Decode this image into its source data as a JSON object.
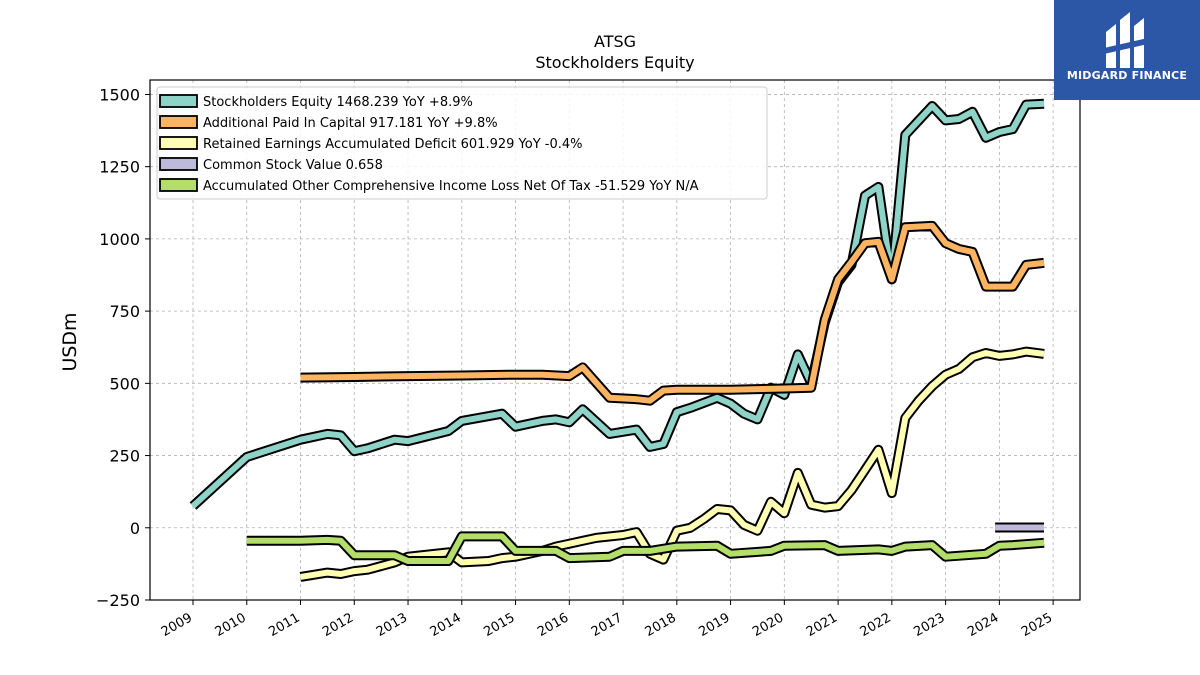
{
  "chart_data": {
    "type": "line",
    "title": "ATSG",
    "subtitle": "Stockholders  Equity",
    "ylabel": "USDm",
    "xlabel": "",
    "ylim": [
      -250,
      1550
    ],
    "xlim": [
      2008.2,
      2025.5
    ],
    "yticks": [
      -250,
      0,
      250,
      500,
      750,
      1000,
      1250,
      1500
    ],
    "ytick_labels": [
      "−250",
      "0",
      "250",
      "500",
      "750",
      "1000",
      "1250",
      "1500"
    ],
    "xticks": [
      "2009",
      "2010",
      "2011",
      "2012",
      "2013",
      "2014",
      "2015",
      "2016",
      "2017",
      "2018",
      "2019",
      "2020",
      "2021",
      "2022",
      "2023",
      "2024",
      "2025"
    ],
    "grid": true,
    "legend_position": "upper-left",
    "series": [
      {
        "name": "Stockholders Equity  1468.239 YoY +8.9%",
        "color": "#8dd3c7",
        "x": [
          2009.0,
          2010.0,
          2011.0,
          2011.5,
          2011.75,
          2012.0,
          2012.25,
          2012.75,
          2013.0,
          2013.75,
          2014.0,
          2014.75,
          2015.0,
          2015.5,
          2015.75,
          2016.0,
          2016.25,
          2016.75,
          2017.25,
          2017.5,
          2017.75,
          2018.0,
          2018.25,
          2018.75,
          2019.0,
          2019.25,
          2019.5,
          2019.75,
          2020.0,
          2020.25,
          2020.5,
          2020.75,
          2021.0,
          2021.25,
          2021.5,
          2021.75,
          2022.0,
          2022.25,
          2022.75,
          2023.0,
          2023.25,
          2023.5,
          2023.75,
          2024.0,
          2024.25,
          2024.5,
          2024.83
        ],
        "values": [
          75,
          245,
          305,
          325,
          320,
          265,
          275,
          305,
          300,
          335,
          370,
          395,
          350,
          370,
          375,
          365,
          410,
          325,
          340,
          280,
          290,
          400,
          415,
          450,
          430,
          395,
          375,
          485,
          460,
          600,
          500,
          710,
          850,
          910,
          1150,
          1180,
          860,
          1360,
          1460,
          1410,
          1415,
          1440,
          1350,
          1370,
          1380,
          1465,
          1468
        ]
      },
      {
        "name": "Additional Paid In Capital  917.181 YoY +9.8%",
        "color": "#fdb462",
        "x": [
          2011.0,
          2012.0,
          2013.0,
          2014.0,
          2015.0,
          2015.5,
          2016.0,
          2016.25,
          2016.75,
          2017.25,
          2017.5,
          2017.75,
          2018.0,
          2018.5,
          2019.0,
          2019.5,
          2020.0,
          2020.5,
          2020.75,
          2021.0,
          2021.25,
          2021.5,
          2021.75,
          2022.0,
          2022.25,
          2022.75,
          2023.0,
          2023.25,
          2023.5,
          2023.75,
          2024.0,
          2024.25,
          2024.5,
          2024.83
        ],
        "values": [
          520,
          522,
          525,
          527,
          530,
          530,
          525,
          555,
          450,
          445,
          440,
          475,
          478,
          478,
          478,
          480,
          482,
          485,
          720,
          860,
          920,
          985,
          990,
          860,
          1040,
          1045,
          985,
          965,
          955,
          835,
          835,
          835,
          910,
          917
        ]
      },
      {
        "name": "Retained Earnings Accumulated Deficit  601.929 YoY -0.4%",
        "color": "#ffffb3",
        "x": [
          2011.0,
          2011.5,
          2011.75,
          2012.0,
          2012.25,
          2012.75,
          2013.0,
          2013.75,
          2014.0,
          2014.5,
          2014.75,
          2015.0,
          2015.5,
          2015.75,
          2016.0,
          2016.25,
          2016.5,
          2017.0,
          2017.25,
          2017.5,
          2017.75,
          2018.0,
          2018.25,
          2018.5,
          2018.75,
          2019.0,
          2019.25,
          2019.5,
          2019.75,
          2020.0,
          2020.25,
          2020.5,
          2020.75,
          2021.0,
          2021.25,
          2021.5,
          2021.75,
          2022.0,
          2022.25,
          2022.5,
          2022.75,
          2023.0,
          2023.25,
          2023.5,
          2023.75,
          2024.0,
          2024.25,
          2024.5,
          2024.83
        ],
        "values": [
          -170,
          -155,
          -160,
          -150,
          -145,
          -120,
          -100,
          -85,
          -120,
          -115,
          -105,
          -100,
          -80,
          -65,
          -55,
          -45,
          -35,
          -25,
          -15,
          -90,
          -110,
          -10,
          0,
          30,
          65,
          60,
          10,
          -10,
          90,
          50,
          190,
          80,
          70,
          75,
          130,
          200,
          270,
          120,
          380,
          440,
          490,
          530,
          550,
          590,
          605,
          595,
          600,
          610,
          602
        ]
      },
      {
        "name": "Common Stock Value  0.658",
        "color": "#bebada",
        "x": [
          2023.92,
          2024.83
        ],
        "values": [
          1,
          1
        ]
      },
      {
        "name": "Accumulated Other Comprehensive Income Loss Net Of Tax  -51.529 YoY N/A",
        "color": "#b3de69",
        "x": [
          2010.0,
          2011.0,
          2011.5,
          2011.75,
          2012.0,
          2012.75,
          2013.0,
          2013.75,
          2014.0,
          2014.75,
          2015.0,
          2015.75,
          2016.0,
          2016.75,
          2017.0,
          2017.5,
          2018.0,
          2018.75,
          2019.0,
          2019.75,
          2020.0,
          2020.75,
          2021.0,
          2021.75,
          2022.0,
          2022.25,
          2022.75,
          2023.0,
          2023.75,
          2024.0,
          2024.25,
          2024.83
        ],
        "values": [
          -45,
          -45,
          -42,
          -45,
          -95,
          -95,
          -115,
          -115,
          -30,
          -30,
          -80,
          -80,
          -105,
          -100,
          -80,
          -80,
          -65,
          -62,
          -90,
          -80,
          -62,
          -60,
          -80,
          -75,
          -80,
          -65,
          -60,
          -100,
          -90,
          -62,
          -60,
          -52
        ]
      }
    ]
  },
  "logo": {
    "text": "MIDGARD FINANCE",
    "background": "#2b57a6"
  }
}
